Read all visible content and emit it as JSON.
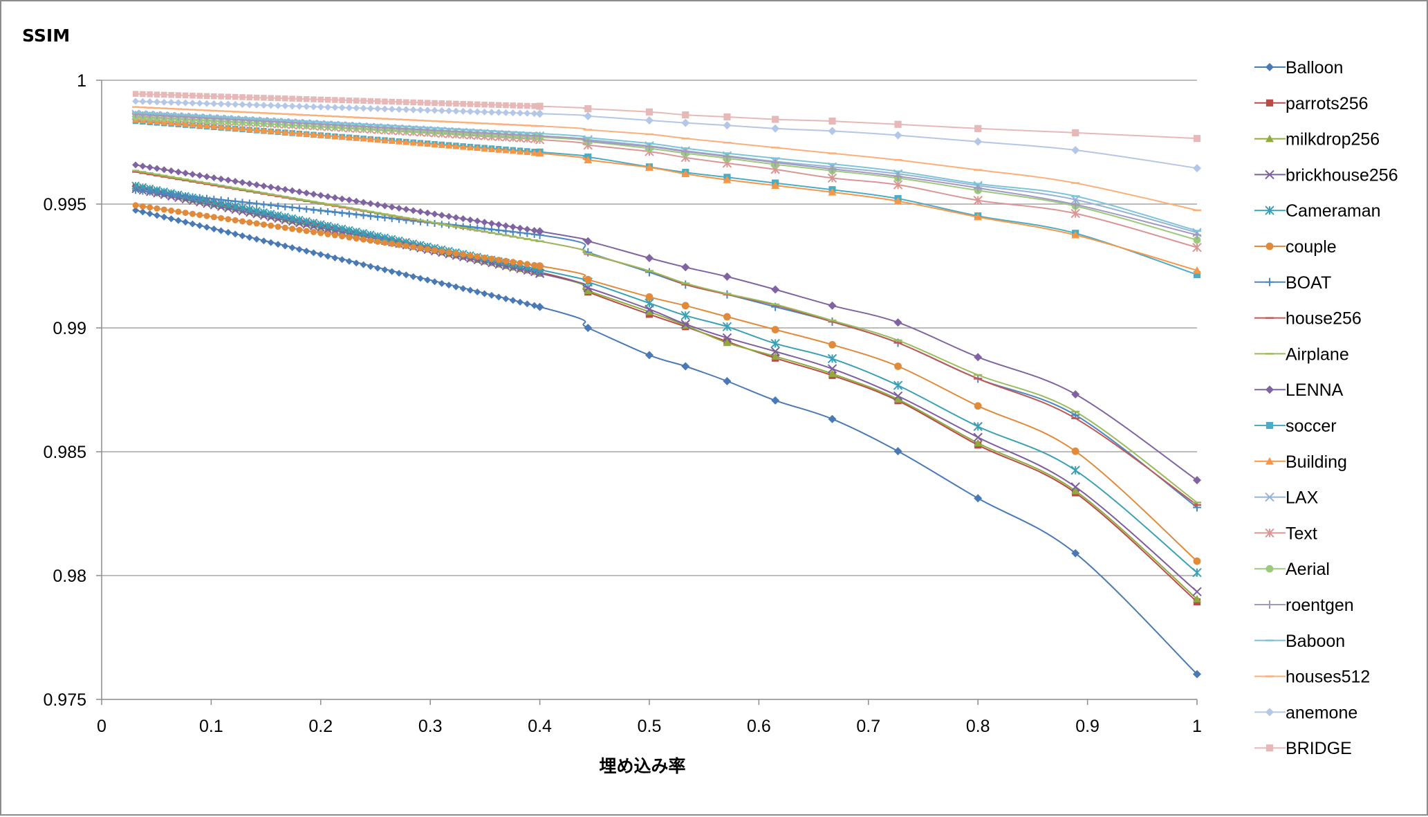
{
  "chart_data": {
    "type": "line",
    "ylabel": "SSIM",
    "xlabel": "埋め込み率",
    "xlim": [
      0,
      1
    ],
    "ylim": [
      0.975,
      1
    ],
    "xticks": [
      "0",
      "0.1",
      "0.2",
      "0.3",
      "0.4",
      "0.5",
      "0.6",
      "0.7",
      "0.8",
      "0.9",
      "1"
    ],
    "yticks": [
      "0.975",
      "0.98",
      "0.985",
      "0.99",
      "0.995",
      "1"
    ],
    "grid": true,
    "legend_position": "right",
    "x": [
      0.031,
      0.4,
      0.444,
      0.5,
      0.533,
      0.571,
      0.615,
      0.667,
      0.727,
      0.8,
      0.889,
      1.0
    ],
    "series": [
      {
        "name": "Balloon",
        "color": "#4a7ab5",
        "marker": "diamond",
        "values": [
          0.99475,
          0.99085,
          0.99,
          0.9889,
          0.98845,
          0.98785,
          0.98707,
          0.98632,
          0.98502,
          0.98312,
          0.9809,
          0.97602
        ]
      },
      {
        "name": "parrots256",
        "color": "#b94a48",
        "marker": "square",
        "values": [
          0.9957,
          0.99225,
          0.99145,
          0.99055,
          0.99005,
          0.98945,
          0.98878,
          0.98808,
          0.98706,
          0.98527,
          0.98334,
          0.97894
        ]
      },
      {
        "name": "milkdrop256",
        "color": "#8faa3d",
        "marker": "triangle",
        "values": [
          0.99565,
          0.9922,
          0.9915,
          0.99065,
          0.9901,
          0.9894,
          0.98885,
          0.98815,
          0.98712,
          0.98535,
          0.98342,
          0.97905
        ]
      },
      {
        "name": "brickhouse256",
        "color": "#7d5e9e",
        "marker": "x",
        "values": [
          0.9956,
          0.9922,
          0.99162,
          0.99075,
          0.99015,
          0.9896,
          0.98905,
          0.98835,
          0.98725,
          0.98558,
          0.98358,
          0.97935
        ]
      },
      {
        "name": "Cameraman",
        "color": "#3aa0b5",
        "marker": "star",
        "values": [
          0.99575,
          0.99235,
          0.99185,
          0.991,
          0.9905,
          0.99005,
          0.98937,
          0.98876,
          0.98768,
          0.98602,
          0.98425,
          0.98012
        ]
      },
      {
        "name": "couple",
        "color": "#e08a3a",
        "marker": "circle",
        "values": [
          0.99495,
          0.9925,
          0.99195,
          0.99125,
          0.9909,
          0.99045,
          0.98993,
          0.98932,
          0.98845,
          0.98685,
          0.98502,
          0.98058
        ]
      },
      {
        "name": "BOAT",
        "color": "#4a87c0",
        "marker": "plus",
        "values": [
          0.99555,
          0.99375,
          0.99305,
          0.99225,
          0.99175,
          0.99135,
          0.99085,
          0.99025,
          0.9894,
          0.98795,
          0.98648,
          0.98275
        ]
      },
      {
        "name": "house256",
        "color": "#c05a55",
        "marker": "dash",
        "values": [
          0.9963,
          0.9935,
          0.99298,
          0.9923,
          0.99175,
          0.99135,
          0.99092,
          0.99025,
          0.9894,
          0.98795,
          0.98635,
          0.98285
        ]
      },
      {
        "name": "Airplane",
        "color": "#9bbb59",
        "marker": "dash",
        "values": [
          0.99635,
          0.9935,
          0.993,
          0.9923,
          0.9918,
          0.99138,
          0.99095,
          0.9903,
          0.9895,
          0.9881,
          0.98662,
          0.98295
        ]
      },
      {
        "name": "LENNA",
        "color": "#8064a2",
        "marker": "diamond",
        "values": [
          0.99658,
          0.9939,
          0.9935,
          0.99282,
          0.99245,
          0.99207,
          0.99155,
          0.9909,
          0.99022,
          0.98882,
          0.98732,
          0.98385
        ]
      },
      {
        "name": "soccer",
        "color": "#4bacc6",
        "marker": "square",
        "values": [
          0.99835,
          0.9971,
          0.9969,
          0.9965,
          0.99628,
          0.99608,
          0.99585,
          0.99558,
          0.99522,
          0.99452,
          0.99382,
          0.99215
        ]
      },
      {
        "name": "Building",
        "color": "#f79646",
        "marker": "triangle",
        "values": [
          0.9984,
          0.99705,
          0.99678,
          0.99648,
          0.99622,
          0.99598,
          0.99575,
          0.99548,
          0.99512,
          0.99448,
          0.99375,
          0.99232
        ]
      },
      {
        "name": "LAX",
        "color": "#95b3d7",
        "marker": "x",
        "values": [
          0.99865,
          0.99775,
          0.9976,
          0.99735,
          0.99715,
          0.99695,
          0.99672,
          0.9965,
          0.99622,
          0.99575,
          0.99518,
          0.99385
        ]
      },
      {
        "name": "Text",
        "color": "#d99694",
        "marker": "star",
        "values": [
          0.99855,
          0.9976,
          0.99738,
          0.99712,
          0.99688,
          0.99665,
          0.9964,
          0.99605,
          0.99578,
          0.99515,
          0.99462,
          0.99325
        ]
      },
      {
        "name": "Aerial",
        "color": "#9bca7a",
        "marker": "circle",
        "values": [
          0.9985,
          0.9977,
          0.99752,
          0.99725,
          0.99705,
          0.99685,
          0.9966,
          0.99635,
          0.99605,
          0.99555,
          0.99492,
          0.99355
        ]
      },
      {
        "name": "roentgen",
        "color": "#a497c0",
        "marker": "plus",
        "values": [
          0.99862,
          0.99775,
          0.99755,
          0.99732,
          0.99712,
          0.99692,
          0.99668,
          0.99642,
          0.99612,
          0.99565,
          0.99498,
          0.99375
        ]
      },
      {
        "name": "Baboon",
        "color": "#7cc4d8",
        "marker": "dash",
        "values": [
          0.9987,
          0.99785,
          0.99768,
          0.99745,
          0.99725,
          0.99705,
          0.99685,
          0.99662,
          0.99632,
          0.99582,
          0.99532,
          0.99392
        ]
      },
      {
        "name": "houses512",
        "color": "#fab07a",
        "marker": "dash",
        "values": [
          0.99892,
          0.99815,
          0.998,
          0.99782,
          0.99765,
          0.99748,
          0.99728,
          0.99705,
          0.99678,
          0.99638,
          0.99585,
          0.99475
        ]
      },
      {
        "name": "anemone",
        "color": "#b4c7e7",
        "marker": "diamond",
        "values": [
          0.99915,
          0.99865,
          0.99855,
          0.99838,
          0.99828,
          0.99818,
          0.99805,
          0.99795,
          0.99778,
          0.99752,
          0.99718,
          0.99645
        ]
      },
      {
        "name": "BRIDGE",
        "color": "#e6b9b8",
        "marker": "square",
        "values": [
          0.99945,
          0.99895,
          0.99885,
          0.99872,
          0.9986,
          0.99852,
          0.99842,
          0.99835,
          0.99822,
          0.99805,
          0.99788,
          0.99765
        ]
      }
    ]
  }
}
